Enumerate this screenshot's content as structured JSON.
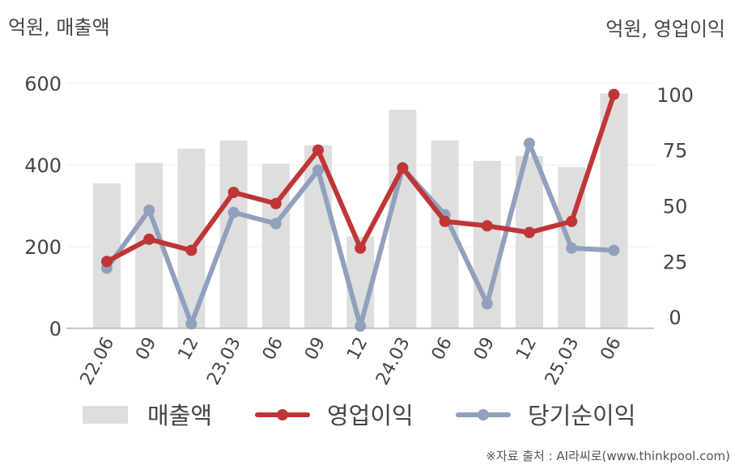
{
  "left_unit": "억원, 매출액",
  "right_unit": "억원, 영업이익",
  "source": "※자료 출처 : AI라씨로(www.thinkpool.com)",
  "chart_data": {
    "type": "bar+line",
    "categories": [
      "22.06",
      "09",
      "12",
      "23.03",
      "06",
      "09",
      "12",
      "24.03",
      "06",
      "09",
      "12",
      "25.03",
      "06"
    ],
    "y_left": {
      "min": 0,
      "max": 600,
      "ticks": [
        "0",
        "200",
        "400",
        "600"
      ]
    },
    "y_right": {
      "min": -5,
      "max": 105,
      "ticks": [
        "0",
        "25",
        "50",
        "75",
        "100"
      ]
    },
    "grid": true,
    "legend_position": "bottom",
    "series": [
      {
        "name": "매출액",
        "type": "bar",
        "axis": "left",
        "color": "#dedede",
        "values": [
          355,
          405,
          440,
          460,
          403,
          448,
          225,
          535,
          460,
          410,
          422,
          395,
          575
        ]
      },
      {
        "name": "영업이익",
        "type": "line",
        "axis": "right",
        "color": "#c03535",
        "values": [
          25,
          35,
          30,
          56,
          51,
          75,
          31,
          67,
          43,
          41,
          38,
          43,
          100
        ]
      },
      {
        "name": "당기순이익",
        "type": "line",
        "axis": "right",
        "color": "#91a0bc",
        "values": [
          22,
          48,
          -3,
          47,
          42,
          66,
          -4,
          67,
          46,
          6,
          78,
          31,
          30
        ]
      }
    ]
  }
}
